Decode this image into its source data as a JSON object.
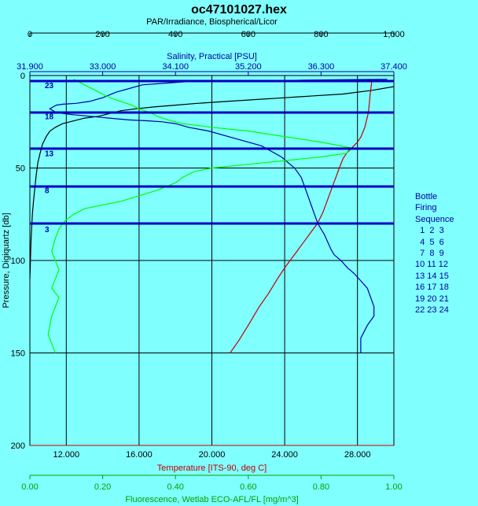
{
  "chart_data": {
    "type": "line",
    "title": "oc47101027.hex",
    "y_axis": {
      "label": "Pressure, Digiquartz [db]",
      "range": [
        0,
        200
      ],
      "ticks": [
        "0",
        "50",
        "100",
        "150",
        "200"
      ],
      "inverted": true
    },
    "top_axes": [
      {
        "label": "PAR/Irradiance, Biospherical/Licor",
        "range": [
          0,
          1000
        ],
        "ticks": [
          "0",
          "200",
          "400",
          "600",
          "800",
          "1,000"
        ],
        "color": "#000000"
      },
      {
        "label": "Salinity, Practical [PSU]",
        "range": [
          31.9,
          37.4
        ],
        "ticks": [
          "31.900",
          "33.000",
          "34.100",
          "35.200",
          "36.300",
          "37.400"
        ],
        "color": "#0000a0"
      }
    ],
    "bottom_axes": [
      {
        "label": "Temperature [ITS-90, deg C]",
        "range": [
          10,
          30
        ],
        "ticks": [
          "12.000",
          "16.000",
          "20.000",
          "24.000",
          "28.000"
        ],
        "tick_values": [
          12,
          16,
          20,
          24,
          28
        ],
        "color": "#c00000"
      },
      {
        "label": "Fluorescence, Wetlab ECO-AFL/FL [mg/m^3]",
        "range": [
          0,
          1
        ],
        "ticks": [
          "0.00",
          "0.20",
          "0.40",
          "0.60",
          "0.80",
          "1.00"
        ],
        "color": "#00a000"
      }
    ],
    "grid": true,
    "series": [
      {
        "axis": "PAR",
        "color": "#000000",
        "x": [
          999,
          940,
          860,
          780,
          700,
          620,
          540,
          460,
          400,
          340,
          290,
          250,
          230,
          210,
          190,
          170,
          150,
          130,
          110,
          90,
          70,
          55,
          45,
          35,
          28,
          22,
          18,
          14,
          10,
          7,
          5,
          3,
          2,
          1,
          0
        ],
        "y": [
          6,
          8,
          10,
          11,
          12,
          13,
          14,
          15,
          16,
          17,
          18,
          19,
          20,
          21,
          22,
          22.5,
          23,
          24,
          25,
          26,
          28,
          30,
          33,
          37,
          42,
          47,
          53,
          60,
          68,
          75,
          82,
          90,
          97,
          103,
          110
        ]
      },
      {
        "axis": "Salinity",
        "color": "#0000a0",
        "x": [
          37.3,
          36.0,
          35.0,
          34.4,
          34.0,
          33.6,
          33.4,
          33.2,
          33.0,
          32.8,
          32.6,
          32.4,
          32.3,
          32.25,
          32.2,
          32.3,
          32.5,
          32.8,
          33.1,
          33.4,
          33.7,
          33.9,
          34.1,
          34.3,
          34.6,
          35.0,
          35.4,
          35.7,
          35.9,
          36.0,
          36.05,
          36.1,
          36.15,
          36.2,
          36.25,
          36.35,
          36.4,
          36.45,
          36.5,
          36.6,
          36.7,
          36.8,
          36.9,
          37.0,
          37.05,
          37.1,
          37.1,
          37.0,
          36.9,
          36.9
        ],
        "y": [
          2,
          2.5,
          3,
          3,
          4,
          5,
          7,
          9,
          12,
          14,
          15,
          15.5,
          16,
          17,
          18,
          20,
          21,
          22,
          23,
          24,
          24.5,
          25,
          26,
          28,
          30,
          34,
          38,
          44,
          50,
          55,
          60,
          65,
          70,
          75,
          80,
          86,
          90,
          94,
          97,
          100,
          104,
          107,
          111,
          115,
          120,
          125,
          130,
          135,
          142,
          150
        ]
      },
      {
        "axis": "Temperature",
        "color": "#c00000",
        "x": [
          28.8,
          28.7,
          28.6,
          28.4,
          28.2,
          28.0,
          27.8,
          27.6,
          27.4,
          27.2,
          27.0,
          26.7,
          26.4,
          26.1,
          25.8,
          25.5,
          25.2,
          24.9,
          24.6,
          24.3,
          24.0,
          23.6,
          23.1,
          22.6,
          22.0,
          21.5,
          21.0
        ],
        "y": [
          2,
          10,
          20,
          28,
          33,
          36,
          38,
          40,
          42,
          45,
          50,
          58,
          66,
          74,
          80,
          84,
          88,
          92,
          96,
          100,
          104,
          110,
          118,
          125,
          135,
          143,
          150
        ]
      },
      {
        "axis": "Fluorescence",
        "color": "#00ff00",
        "x": [
          0.12,
          0.15,
          0.18,
          0.2,
          0.22,
          0.25,
          0.28,
          0.3,
          0.33,
          0.35,
          0.38,
          0.42,
          0.5,
          0.6,
          0.7,
          0.8,
          0.88,
          0.87,
          0.8,
          0.7,
          0.6,
          0.5,
          0.45,
          0.42,
          0.4,
          0.35,
          0.3,
          0.25,
          0.2,
          0.15,
          0.12,
          0.1,
          0.09,
          0.08,
          0.07,
          0.06,
          0.07,
          0.08,
          0.07,
          0.06,
          0.08,
          0.07,
          0.06,
          0.05,
          0.07
        ],
        "y": [
          2,
          5,
          8,
          10,
          12,
          14,
          16,
          18,
          20,
          22,
          24,
          26,
          28,
          30,
          33,
          36,
          39,
          42,
          44,
          46,
          48,
          50,
          52,
          55,
          58,
          62,
          65,
          68,
          70,
          72,
          75,
          78,
          80,
          83,
          88,
          95,
          100,
          105,
          110,
          115,
          120,
          125,
          130,
          140,
          150
        ]
      }
    ],
    "bottle_lines": [
      3,
      20,
      39.5,
      60,
      80
    ],
    "bottle_labels": [
      {
        "text": "23",
        "y": 5
      },
      {
        "text": "18",
        "y": 22
      },
      {
        "text": "13",
        "y": 42
      },
      {
        "text": "8",
        "y": 62
      },
      {
        "text": "3",
        "y": 83
      }
    ],
    "legend": {
      "title": [
        "Bottle",
        "Firing",
        "Sequence"
      ],
      "rows": [
        "  1  2  3",
        "  4  5  6",
        "  7  8  9",
        "10 11 12",
        "13 14 15",
        "16 17 18",
        "19 20 21",
        "22 23 24"
      ]
    }
  }
}
